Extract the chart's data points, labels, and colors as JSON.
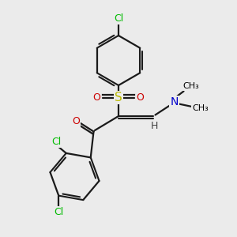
{
  "background_color": "#ebebeb",
  "atom_colors": {
    "C": "#000000",
    "H": "#404040",
    "Cl": "#00bb00",
    "N": "#0000cc",
    "O": "#cc0000",
    "S": "#bbbb00"
  },
  "bond_color": "#1a1a1a",
  "figsize": [
    3.0,
    3.0
  ],
  "dpi": 100
}
